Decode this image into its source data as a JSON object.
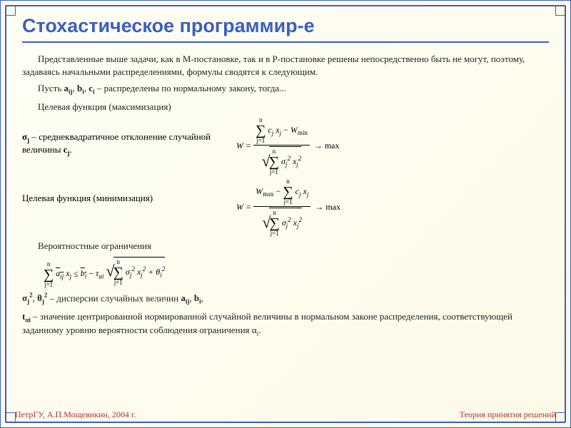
{
  "title": "Стохастическое программир-е",
  "paragraphs": {
    "intro": "Представленные выше задачи, как в М-постановке, так и в Р-постановке решены непосредственно быть не могут, поэтому, задаваясь начальными распределениями, формулы сводятся к следующим.",
    "let": "Пусть aᵢⱼ, bᵢ, cᵢ – распределены по нормальному закону, тогда...",
    "obj_max": "Целевая функция (максимизация)",
    "sigma_desc": "σⱼ – среднеквадратичное отклонение случайной величины cⱼ.",
    "obj_min": "Целевая функция (минимизация)",
    "prob_constr": "Вероятностные ограничения",
    "variances": "σⱼ², θⱼ² – дисперсии случайных величин aᵢⱼ, bᵢ,",
    "talpha": "tαᵢ – значение центрированной нормированной случайной величины в нормальном законе распределения, соответствующей заданному уровню вероятности соблюдения ограничения αᵢ."
  },
  "formulas": {
    "max": {
      "lhs": "W = ",
      "numerator_prefix": "",
      "numerator_sum_lower": "j=1",
      "numerator_sum_upper": "n",
      "numerator_terms": "cⱼ xⱼ − W",
      "numerator_suffix_sub": "min",
      "denominator_sum_lower": "j=1",
      "denominator_sum_upper": "n",
      "denominator_terms": "σⱼ² xⱼ²",
      "arrow": "→ max"
    },
    "min": {
      "lhs": "W = ",
      "numerator_prefix": "W",
      "numerator_prefix_sub": "max",
      "numerator_sum_lower": "j=1",
      "numerator_sum_upper": "n",
      "numerator_terms": " − cⱼ xⱼ",
      "denominator_sum_lower": "j=1",
      "denominator_sum_upper": "n",
      "denominator_terms": "σⱼ² xⱼ²",
      "arrow": "→ max"
    },
    "constraint": {
      "sum1_lower": "j=1",
      "sum1_upper": "n",
      "term1": "a̅ᵢⱼ xⱼ ≤ b̅ᵢ − τₐᵢ",
      "sum2_lower": "j=1",
      "sum2_upper": "n",
      "term2": "σⱼ² xⱼ² + θᵢ²"
    }
  },
  "footer": {
    "left": "ПетрГУ, А.П.Мощевикин, 2004 г.",
    "right": "Теория принятия решений"
  },
  "colors": {
    "border": "#3b5fc0",
    "title": "#3b5fc0",
    "footer": "#b03030",
    "background": "#fdfae8"
  },
  "fonts": {
    "title_family": "Verdana",
    "title_size_pt": 20,
    "body_family": "Georgia/Times",
    "body_size_pt": 10,
    "footer_family": "Comic Sans MS",
    "footer_size_pt": 9
  }
}
